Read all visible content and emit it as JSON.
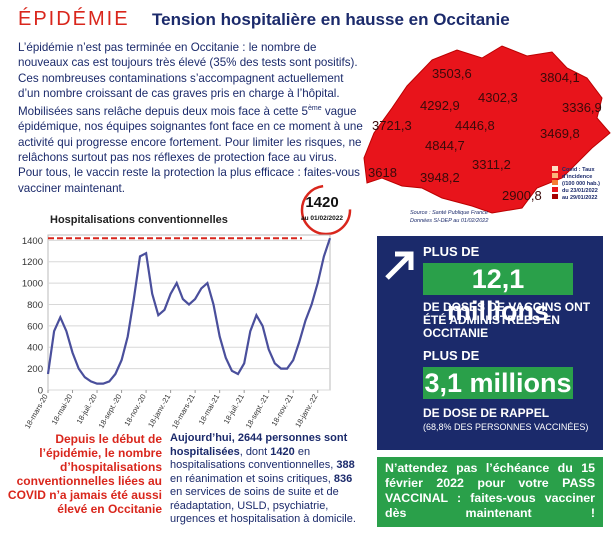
{
  "header": {
    "kicker": "ÉPIDÉMIE",
    "title": "Tension hospitalière en hausse en Occitanie"
  },
  "intro": [
    "L’épidémie n’est pas terminée en Occitanie : le nombre de nouveaux cas est toujours très élevé (35% des tests sont positifs). Ces nombreuses contaminations s’accompagnent actuellement d’un nombre croissant de cas graves pris en charge à l’hôpital. Mobilisées sans relâche depuis deux mois face à cette 5",
    "ème",
    " vague épidémique, nos équipes soignantes font face en ce moment à une activité qui progresse encore fortement. Pour limiter les risques, ne relâchons surtout pas nos réflexes de protection face au virus. Pour tous, le vaccin reste la protection la plus efficace : faites-vous vacciner maintenant."
  ],
  "map": {
    "values": [
      "3503,6",
      "3804,1",
      "4292,9",
      "4302,3",
      "3336,9",
      "3721,3",
      "4446,8",
      "3469,8",
      "4844,7",
      "3311,2",
      "3618",
      "3948,2",
      "2900,8"
    ],
    "legend": [
      "Covid : Taux",
      "d’incidence",
      "(/100 000 hab.)",
      "du 23/01/2022",
      "au 29/01/2022"
    ],
    "source": "Source : Santé Publique France",
    "data_note": "Données SI-DEP au 01/02/2022"
  },
  "chart_data": {
    "type": "line",
    "title": "Hospitalisations conventionnelles",
    "categories": [
      "18-mars-20",
      null,
      null,
      null,
      "18-mai-20",
      null,
      null,
      null,
      "18-juil.-20",
      null,
      null,
      null,
      "18-sept.-20",
      null,
      null,
      null,
      "18-nov.-20",
      null,
      null,
      null,
      "18-janv.-21",
      null,
      null,
      null,
      "18-mars-21",
      null,
      null,
      null,
      "18-mai-21",
      null,
      null,
      null,
      "18-juil.-21",
      null,
      null,
      null,
      "18-sept.-21",
      null,
      null,
      null,
      "18-nov.-21",
      null,
      null,
      null,
      "18-janv.-22",
      null,
      null
    ],
    "values": [
      150,
      550,
      680,
      550,
      350,
      200,
      120,
      80,
      60,
      60,
      80,
      150,
      280,
      500,
      850,
      1250,
      1280,
      900,
      700,
      750,
      900,
      1000,
      850,
      800,
      850,
      950,
      1000,
      800,
      500,
      300,
      180,
      150,
      250,
      550,
      700,
      600,
      380,
      250,
      200,
      200,
      280,
      450,
      650,
      800,
      1000,
      1250,
      1420
    ],
    "color": "#4a4f9c",
    "ylim": [
      0,
      1450
    ],
    "yticks": [
      0,
      200,
      400,
      600,
      800,
      1000,
      1200,
      1400
    ],
    "grid": true,
    "annotation": {
      "value": "1420",
      "date": "au 01/02/2022"
    }
  },
  "stat_note": "Depuis le début de l’épidémie, le nombre d’hospitalisations conventionnelles liées au COVID n’a jamais été aussi élevé en Occitanie",
  "today": [
    "Aujourd’hui, 2644 personnes sont hospitalisées",
    ", dont ",
    "1420",
    " en hospitalisations conventionnelles, ",
    "388",
    " en réanimation et soins critiques, ",
    "836",
    " en services de soins de suite et de réadaptation, USLD, psychiatrie, urgences et hospitalisation à domicile."
  ],
  "vaccination": {
    "lead1": "PLUS DE",
    "figure1": "12,1 millions",
    "text1": "DE DOSES DE VACCINS ONT ÉTÉ ADMINISTRÉES EN OCCITANIE",
    "lead2": "PLUS DE",
    "figure2": "3,1 millions",
    "text2": "DE DOSE DE RAPPEL",
    "note2": "(68,8% DES PERSONNES VACCINÉES)"
  },
  "call_to_action": "N’attendez pas l’échéance du 15 février 2022 pour votre PASS VACCINAL : faites-vous vacciner dès maintenant !"
}
